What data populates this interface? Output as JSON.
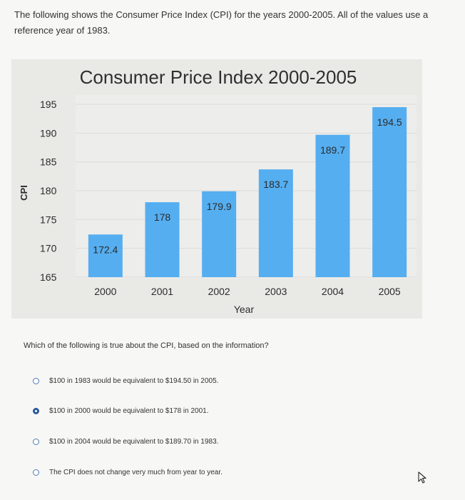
{
  "intro": "The following shows the Consumer Price Index (CPI) for the years 2000-2005. All of the values use a reference year of 1983.",
  "chart_data": {
    "type": "bar",
    "title": "Consumer Price Index 2000-2005",
    "xlabel": "Year",
    "ylabel": "CPI",
    "categories": [
      "2000",
      "2001",
      "2002",
      "2003",
      "2004",
      "2005"
    ],
    "values": [
      172.4,
      178,
      179.9,
      183.7,
      189.7,
      194.5
    ],
    "value_labels": [
      "172.4",
      "178",
      "179.9",
      "183.7",
      "189.7",
      "194.5"
    ],
    "yticks": [
      "195",
      "190",
      "185",
      "180",
      "175",
      "170",
      "165"
    ],
    "ylim": [
      165,
      195
    ],
    "grid": true,
    "legend": "none",
    "bar_color": "#55aef0"
  },
  "question": "Which of the following is true about the CPI, based on the information?",
  "options": [
    {
      "label": "$100 in 1983 would be equivalent to $194.50 in 2005.",
      "selected": false
    },
    {
      "label": "$100 in 2000 would be equivalent to $178 in 2001.",
      "selected": true
    },
    {
      "label": "$100 in 2004 would be equivalent to $189.70 in 1983.",
      "selected": false
    },
    {
      "label": "The CPI does not change very much from year to year.",
      "selected": false
    }
  ]
}
